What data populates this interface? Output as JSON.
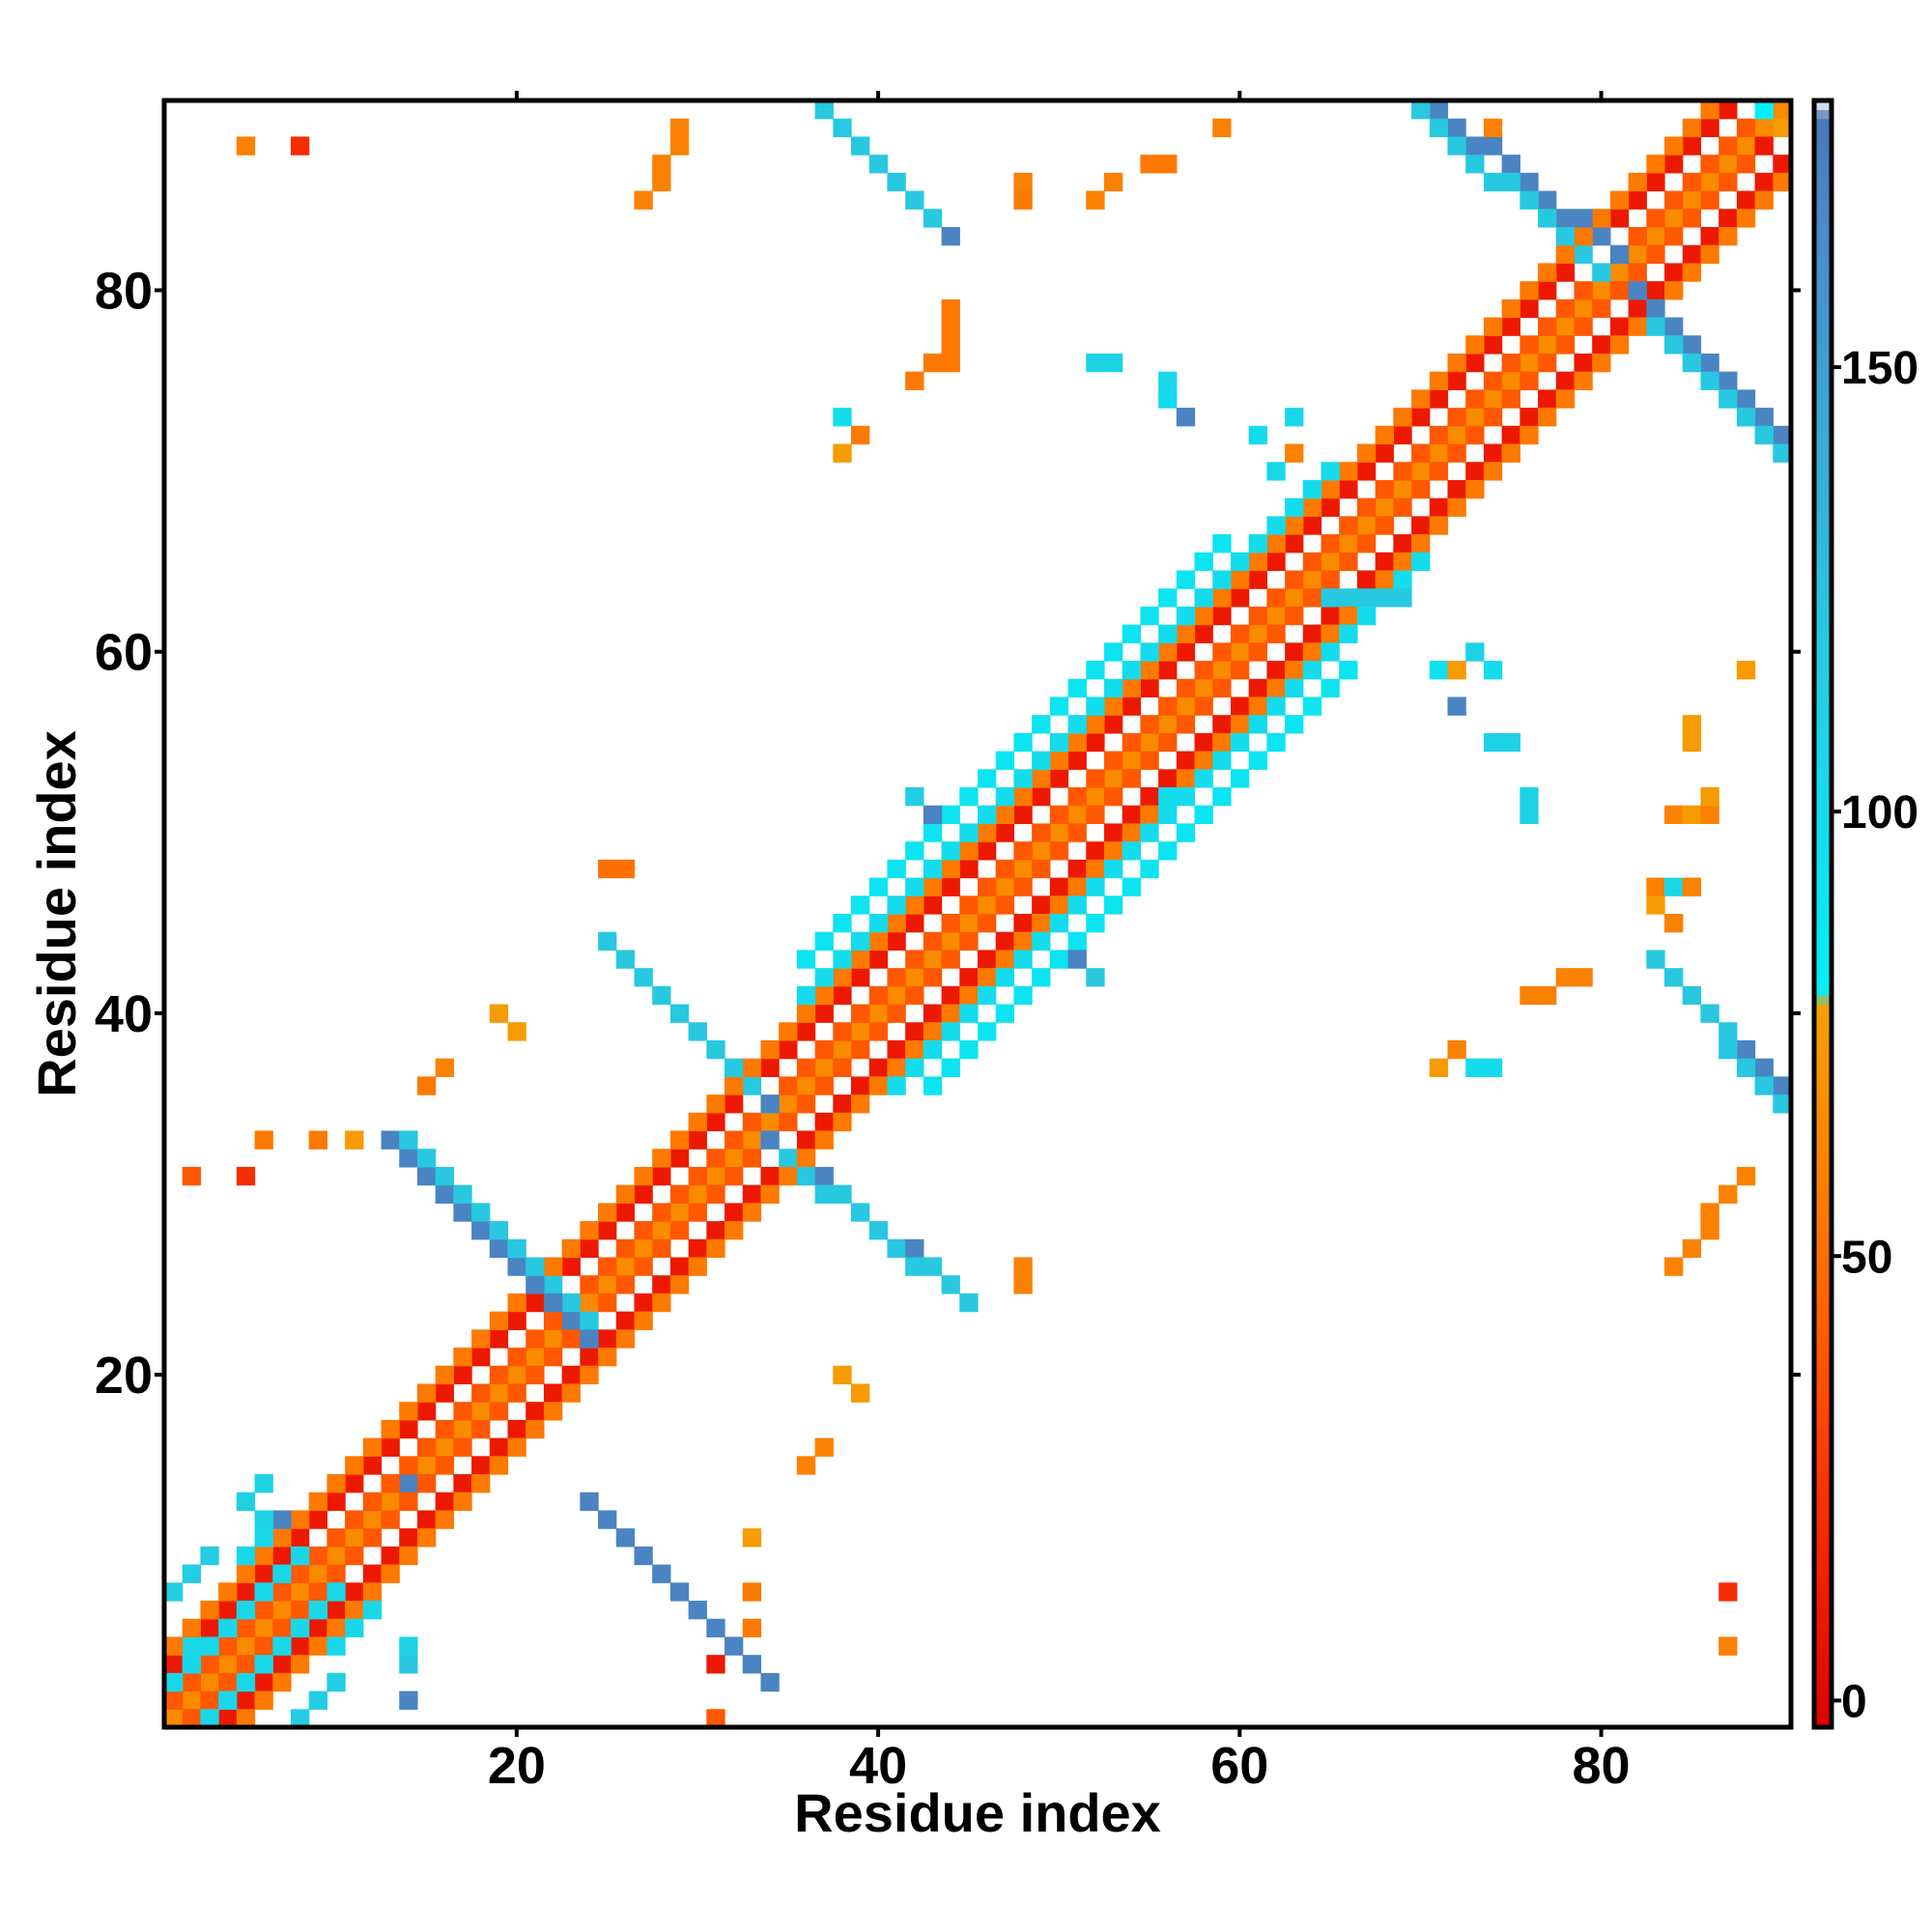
{
  "chart_data": {
    "type": "heatmap",
    "title": "",
    "xlabel": "Residue index",
    "ylabel": "Residue index",
    "xlim": [
      1,
      90
    ],
    "ylim": [
      1,
      90
    ],
    "xticks": [
      20,
      40,
      60,
      80
    ],
    "yticks": [
      20,
      40,
      60,
      80
    ],
    "colorbar": {
      "range": [
        -3,
        180
      ],
      "ticks": [
        0,
        50,
        100,
        150
      ],
      "stops": [
        {
          "value": -3,
          "color": "#e00000"
        },
        {
          "value": 30,
          "color": "#ff4000"
        },
        {
          "value": 50,
          "color": "#ff7000"
        },
        {
          "value": 78,
          "color": "#f5a000"
        },
        {
          "value": 80,
          "color": "#00f0f8"
        },
        {
          "value": 120,
          "color": "#28c8e0"
        },
        {
          "value": 165,
          "color": "#4a8cc8"
        },
        {
          "value": 178,
          "color": "#4a78b8"
        },
        {
          "value": 180,
          "color": "#ffffff"
        }
      ]
    },
    "grid": false,
    "legend": "colorbar-right",
    "segments": [
      {
        "x": [
          1,
          90
        ],
        "y": [
          1,
          90
        ],
        "v": 65,
        "note": "main diagonal"
      },
      {
        "x": [
          2,
          89
        ],
        "y": [
          1,
          88
        ],
        "v": 40
      },
      {
        "x": [
          1,
          88
        ],
        "y": [
          2,
          89
        ],
        "v": 40
      },
      {
        "x": [
          4,
          90
        ],
        "y": [
          1,
          87
        ],
        "v": 10
      },
      {
        "x": [
          1,
          87
        ],
        "y": [
          4,
          90
        ],
        "v": 10
      },
      {
        "x": [
          5,
          90
        ],
        "y": [
          1,
          86
        ],
        "v": 55
      },
      {
        "x": [
          1,
          86
        ],
        "y": [
          5,
          90
        ],
        "v": 55
      },
      {
        "x": [
          3,
          10
        ],
        "y": [
          1,
          8
        ],
        "v": 105
      },
      {
        "x": [
          1,
          8
        ],
        "y": [
          3,
          10
        ],
        "v": 105
      },
      {
        "x": [
          8,
          10
        ],
        "y": [
          1,
          3
        ],
        "v": 115
      },
      {
        "x": [
          1,
          3
        ],
        "y": [
          8,
          10
        ],
        "v": 115
      },
      {
        "x": [
          41,
          70
        ],
        "y": [
          36,
          65
        ],
        "v": 100
      },
      {
        "x": [
          36,
          65
        ],
        "y": [
          41,
          70
        ],
        "v": 100
      },
      {
        "x": [
          43,
          66
        ],
        "y": [
          36,
          59
        ],
        "v": 92
      },
      {
        "x": [
          36,
          59
        ],
        "y": [
          43,
          66
        ],
        "v": 92
      },
      {
        "x": [
          10,
          12
        ],
        "y": [
          5,
          7
        ],
        "v": 105
      },
      {
        "x": [
          5,
          7
        ],
        "y": [
          10,
          12
        ],
        "v": 105
      },
      {
        "x": [
          24,
          34
        ],
        "y": [
          13,
          3
        ],
        "v": 170
      },
      {
        "x": [
          13,
          24
        ],
        "y": [
          33,
          22
        ],
        "v": 170
      },
      {
        "x": [
          14,
          24
        ],
        "y": [
          33,
          23
        ],
        "v": 120
      },
      {
        "x": [
          26,
          34
        ],
        "y": [
          43,
          35
        ],
        "v": 170
      },
      {
        "x": [
          25,
          33
        ],
        "y": [
          44,
          36
        ],
        "v": 120
      },
      {
        "x": [
          34,
          44
        ],
        "y": [
          33,
          25
        ],
        "v": 170
      },
      {
        "x": [
          35,
          45
        ],
        "y": [
          32,
          24
        ],
        "v": 120
      },
      {
        "x": [
          38,
          44
        ],
        "y": [
          89,
          83
        ],
        "v": 170
      },
      {
        "x": [
          37,
          43
        ],
        "y": [
          90,
          84
        ],
        "v": 120
      },
      {
        "x": [
          71,
          81
        ],
        "y": [
          90,
          82
        ],
        "v": 170
      },
      {
        "x": [
          70,
          80
        ],
        "y": [
          90,
          81
        ],
        "v": 120
      },
      {
        "x": [
          82,
          90
        ],
        "y": [
          80,
          72
        ],
        "v": 170
      },
      {
        "x": [
          83,
          90
        ],
        "y": [
          78,
          71
        ],
        "v": 120
      },
      {
        "x": [
          84,
          90
        ],
        "y": [
          42,
          36
        ],
        "v": 170
      },
      {
        "x": [
          83,
          90
        ],
        "y": [
          43,
          35
        ],
        "v": 120
      },
      {
        "x": [
          65,
          69
        ],
        "y": [
          63,
          63
        ],
        "v": 120
      },
      {
        "x": [
          44,
          44
        ],
        "y": [
          76,
          79
        ],
        "v": 55
      },
      {
        "x": [
          42,
          44
        ],
        "y": [
          75,
          77
        ],
        "v": 55
      },
      {
        "x": [
          27,
          29
        ],
        "y": [
          85,
          89
        ],
        "v": 60
      },
      {
        "x": [
          76,
          79
        ],
        "y": [
          41,
          42
        ],
        "v": 60
      },
      {
        "x": [
          84,
          88
        ],
        "y": [
          26,
          31
        ],
        "v": 60
      }
    ],
    "cells": [
      [
        5,
        88,
        60
      ],
      [
        8,
        88,
        20
      ],
      [
        2,
        31,
        40
      ],
      [
        5,
        31,
        20
      ],
      [
        6,
        33,
        55
      ],
      [
        9,
        33,
        55
      ],
      [
        11,
        33,
        75
      ],
      [
        16,
        37,
        60
      ],
      [
        15,
        36,
        55
      ],
      [
        19,
        40,
        75
      ],
      [
        20,
        39,
        75
      ],
      [
        25,
        48,
        50
      ],
      [
        26,
        48,
        50
      ],
      [
        48,
        25,
        60
      ],
      [
        48,
        26,
        60
      ],
      [
        38,
        20,
        75
      ],
      [
        39,
        19,
        75
      ],
      [
        33,
        11,
        75
      ],
      [
        31,
        4,
        10
      ],
      [
        33,
        6,
        55
      ],
      [
        33,
        8,
        55
      ],
      [
        31,
        1,
        40
      ],
      [
        36,
        15,
        60
      ],
      [
        37,
        16,
        60
      ],
      [
        14,
        14,
        170
      ],
      [
        14,
        2,
        170
      ],
      [
        14,
        4,
        120
      ],
      [
        14,
        5,
        110
      ],
      [
        42,
        52,
        115
      ],
      [
        43,
        51,
        170
      ],
      [
        51,
        43,
        170
      ],
      [
        52,
        42,
        120
      ],
      [
        56,
        52,
        100
      ],
      [
        56,
        74,
        100
      ],
      [
        57,
        73,
        170
      ],
      [
        61,
        72,
        100
      ],
      [
        63,
        73,
        105
      ],
      [
        63,
        71,
        60
      ],
      [
        62,
        70,
        105
      ],
      [
        52,
        76,
        110
      ],
      [
        53,
        76,
        110
      ],
      [
        56,
        75,
        105
      ],
      [
        53,
        86,
        60
      ],
      [
        52,
        85,
        60
      ],
      [
        55,
        87,
        55
      ],
      [
        56,
        87,
        55
      ],
      [
        48,
        86,
        60
      ],
      [
        48,
        85,
        55
      ],
      [
        59,
        89,
        60
      ],
      [
        38,
        73,
        100
      ],
      [
        39,
        72,
        55
      ],
      [
        38,
        71,
        75
      ],
      [
        71,
        37,
        75
      ],
      [
        72,
        38,
        60
      ],
      [
        73,
        37,
        100
      ],
      [
        74,
        37,
        100
      ],
      [
        71,
        59,
        95
      ],
      [
        72,
        59,
        75
      ],
      [
        73,
        60,
        110
      ],
      [
        74,
        59,
        100
      ],
      [
        72,
        57,
        170
      ],
      [
        74,
        55,
        110
      ],
      [
        75,
        55,
        110
      ],
      [
        76,
        51,
        110
      ],
      [
        76,
        52,
        110
      ],
      [
        88,
        59,
        75
      ],
      [
        85,
        55,
        75
      ],
      [
        85,
        56,
        75
      ],
      [
        84,
        51,
        60
      ],
      [
        85,
        51,
        75
      ],
      [
        86,
        51,
        60
      ],
      [
        86,
        52,
        75
      ],
      [
        83,
        47,
        60
      ],
      [
        84,
        47,
        105
      ],
      [
        85,
        47,
        60
      ],
      [
        83,
        46,
        75
      ],
      [
        84,
        45,
        60
      ],
      [
        87,
        8,
        20
      ],
      [
        87,
        5,
        60
      ],
      [
        2,
        5,
        105
      ],
      [
        5,
        13,
        110
      ],
      [
        6,
        14,
        110
      ],
      [
        6,
        12,
        110
      ],
      [
        7,
        12,
        170
      ],
      [
        74,
        89,
        60
      ],
      [
        89,
        90,
        80
      ],
      [
        90,
        89,
        75
      ],
      [
        89,
        88,
        10
      ]
    ]
  },
  "colorbar_tick_labels": [
    "0",
    "50",
    "100",
    "150"
  ],
  "x_tick_labels": [
    "20",
    "40",
    "60",
    "80"
  ],
  "y_tick_labels": [
    "20",
    "40",
    "60",
    "80"
  ]
}
